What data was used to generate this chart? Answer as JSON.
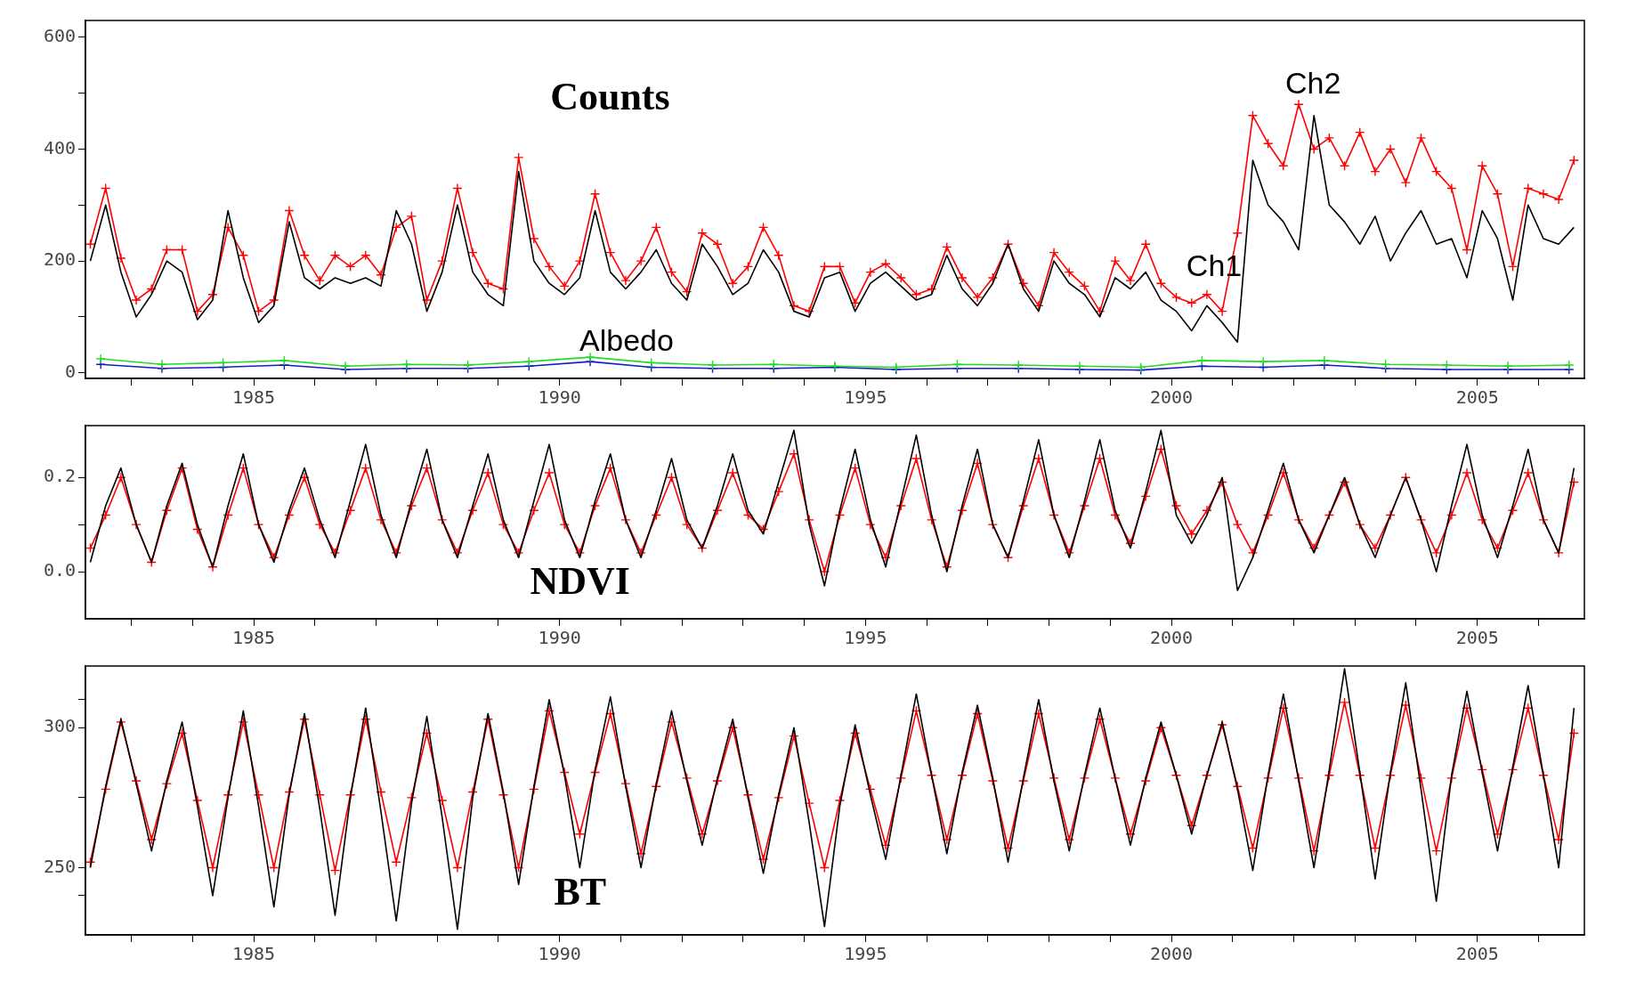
{
  "chart_data": [
    {
      "type": "line",
      "title": "Counts",
      "xlim": [
        1982.25,
        2006.75
      ],
      "xticks": [
        {
          "value": 1983,
          "label": null
        },
        {
          "value": 1984,
          "label": null
        },
        1985,
        {
          "value": 1986,
          "label": null
        },
        {
          "value": 1987,
          "label": null
        },
        {
          "value": 1988,
          "label": null
        },
        {
          "value": 1989,
          "label": null
        },
        1990,
        {
          "value": 1991,
          "label": null
        },
        {
          "value": 1992,
          "label": null
        },
        {
          "value": 1993,
          "label": null
        },
        {
          "value": 1994,
          "label": null
        },
        1995,
        {
          "value": 1996,
          "label": null
        },
        {
          "value": 1997,
          "label": null
        },
        {
          "value": 1998,
          "label": null
        },
        {
          "value": 1999,
          "label": null
        },
        2000,
        {
          "value": 2001,
          "label": null
        },
        {
          "value": 2002,
          "label": null
        },
        {
          "value": 2003,
          "label": null
        },
        {
          "value": 2004,
          "label": null
        },
        2005,
        {
          "value": 2006,
          "label": null
        }
      ],
      "ylim": [
        -10,
        630
      ],
      "yticks": [
        0,
        {
          "value": 100,
          "label": null
        },
        200,
        {
          "value": 300,
          "label": null
        },
        400,
        {
          "value": 500,
          "label": null
        },
        600
      ],
      "x": [
        1982.33,
        1982.58,
        1982.83,
        1983.08,
        1983.33,
        1983.58,
        1983.83,
        1984.08,
        1984.33,
        1984.58,
        1984.83,
        1985.08,
        1985.33,
        1985.58,
        1985.83,
        1986.08,
        1986.33,
        1986.58,
        1986.83,
        1987.08,
        1987.33,
        1987.58,
        1987.83,
        1988.08,
        1988.33,
        1988.58,
        1988.83,
        1989.08,
        1989.33,
        1989.58,
        1989.83,
        1990.08,
        1990.33,
        1990.58,
        1990.83,
        1991.08,
        1991.33,
        1991.58,
        1991.83,
        1992.08,
        1992.33,
        1992.58,
        1992.83,
        1993.08,
        1993.33,
        1993.58,
        1993.83,
        1994.08,
        1994.33,
        1994.58,
        1994.83,
        1995.08,
        1995.33,
        1995.58,
        1995.83,
        1996.08,
        1996.33,
        1996.58,
        1996.83,
        1997.08,
        1997.33,
        1997.58,
        1997.83,
        1998.08,
        1998.33,
        1998.58,
        1998.83,
        1999.08,
        1999.33,
        1999.58,
        1999.83,
        2000.08,
        2000.33,
        2000.58,
        2000.83,
        2001.08,
        2001.33,
        2001.58,
        2001.83,
        2002.08,
        2002.33,
        2002.58,
        2002.83,
        2003.08,
        2003.33,
        2003.58,
        2003.83,
        2004.08,
        2004.33,
        2004.58,
        2004.83,
        2005.08,
        2005.33,
        2005.58,
        2005.83,
        2006.08,
        2006.33,
        2006.58
      ],
      "series": [
        {
          "color": "#000000",
          "marker": "none",
          "values": [
            200,
            300,
            180,
            100,
            140,
            200,
            180,
            95,
            130,
            290,
            170,
            90,
            120,
            270,
            170,
            150,
            170,
            160,
            170,
            155,
            290,
            230,
            110,
            180,
            300,
            180,
            140,
            120,
            360,
            200,
            160,
            140,
            170,
            290,
            180,
            150,
            180,
            220,
            160,
            130,
            230,
            190,
            140,
            160,
            220,
            180,
            110,
            100,
            170,
            180,
            110,
            160,
            180,
            155,
            130,
            140,
            210,
            150,
            120,
            160,
            230,
            150,
            110,
            200,
            160,
            140,
            100,
            170,
            150,
            180,
            130,
            110,
            75,
            120,
            90,
            55,
            380,
            300,
            270,
            220,
            460,
            300,
            270,
            230,
            280,
            200,
            250,
            290,
            230,
            240,
            170,
            290,
            240,
            130,
            300,
            240,
            230,
            260
          ]
        },
        {
          "color": "#ff0000",
          "marker": "cross",
          "values": [
            230,
            330,
            205,
            130,
            150,
            220,
            220,
            110,
            140,
            260,
            210,
            110,
            130,
            290,
            210,
            165,
            210,
            190,
            210,
            175,
            260,
            280,
            130,
            200,
            330,
            215,
            160,
            150,
            385,
            240,
            190,
            155,
            200,
            320,
            215,
            165,
            200,
            260,
            180,
            145,
            250,
            230,
            160,
            190,
            260,
            210,
            120,
            110,
            190,
            190,
            125,
            180,
            195,
            170,
            140,
            150,
            225,
            170,
            135,
            170,
            230,
            160,
            120,
            215,
            180,
            155,
            110,
            200,
            165,
            230,
            160,
            135,
            125,
            140,
            110,
            250,
            460,
            410,
            370,
            480,
            400,
            420,
            370,
            430,
            360,
            400,
            340,
            420,
            360,
            330,
            220,
            370,
            320,
            190,
            330,
            320,
            310,
            380
          ]
        },
        {
          "color": "#22dd22",
          "marker": "cross",
          "x": [
            1982.5,
            1983.5,
            1984.5,
            1985.5,
            1986.5,
            1987.5,
            1988.5,
            1989.5,
            1990.5,
            1991.5,
            1992.5,
            1993.5,
            1994.5,
            1995.5,
            1996.5,
            1997.5,
            1998.5,
            1999.5,
            2000.5,
            2001.5,
            2002.5,
            2003.5,
            2004.5,
            2005.5,
            2006.5
          ],
          "values": [
            25,
            15,
            18,
            22,
            12,
            15,
            14,
            20,
            28,
            18,
            14,
            15,
            12,
            10,
            15,
            14,
            12,
            10,
            22,
            20,
            22,
            15,
            14,
            12,
            14
          ]
        },
        {
          "color": "#1a1acc",
          "marker": "cross",
          "x": [
            1982.5,
            1983.5,
            1984.5,
            1985.5,
            1986.5,
            1987.5,
            1988.5,
            1989.5,
            1990.5,
            1991.5,
            1992.5,
            1993.5,
            1994.5,
            1995.5,
            1996.5,
            1997.5,
            1998.5,
            1999.5,
            2000.5,
            2001.5,
            2002.5,
            2003.5,
            2004.5,
            2005.5,
            2006.5
          ],
          "values": [
            15,
            8,
            10,
            14,
            6,
            8,
            8,
            12,
            20,
            10,
            8,
            8,
            10,
            6,
            8,
            8,
            6,
            5,
            12,
            10,
            14,
            8,
            6,
            6,
            6
          ]
        }
      ],
      "annotations": [
        "Albedo",
        "Ch1",
        "Ch2"
      ]
    },
    {
      "type": "line",
      "title": "NDVI",
      "xlim": [
        1982.25,
        2006.75
      ],
      "xticks": [
        {
          "value": 1983,
          "label": null
        },
        {
          "value": 1984,
          "label": null
        },
        1985,
        {
          "value": 1986,
          "label": null
        },
        {
          "value": 1987,
          "label": null
        },
        {
          "value": 1988,
          "label": null
        },
        {
          "value": 1989,
          "label": null
        },
        1990,
        {
          "value": 1991,
          "label": null
        },
        {
          "value": 1992,
          "label": null
        },
        {
          "value": 1993,
          "label": null
        },
        {
          "value": 1994,
          "label": null
        },
        1995,
        {
          "value": 1996,
          "label": null
        },
        {
          "value": 1997,
          "label": null
        },
        {
          "value": 1998,
          "label": null
        },
        {
          "value": 1999,
          "label": null
        },
        2000,
        {
          "value": 2001,
          "label": null
        },
        {
          "value": 2002,
          "label": null
        },
        {
          "value": 2003,
          "label": null
        },
        {
          "value": 2004,
          "label": null
        },
        2005,
        {
          "value": 2006,
          "label": null
        }
      ],
      "ylim": [
        -0.1,
        0.31
      ],
      "yticks": [
        {
          "value": 0,
          "label": "0.0"
        },
        {
          "value": 0.1,
          "label": null
        },
        {
          "value": 0.2,
          "label": "0.2"
        }
      ],
      "x": [
        1982.33,
        1982.58,
        1982.83,
        1983.08,
        1983.33,
        1983.58,
        1983.83,
        1984.08,
        1984.33,
        1984.58,
        1984.83,
        1985.08,
        1985.33,
        1985.58,
        1985.83,
        1986.08,
        1986.33,
        1986.58,
        1986.83,
        1987.08,
        1987.33,
        1987.58,
        1987.83,
        1988.08,
        1988.33,
        1988.58,
        1988.83,
        1989.08,
        1989.33,
        1989.58,
        1989.83,
        1990.08,
        1990.33,
        1990.58,
        1990.83,
        1991.08,
        1991.33,
        1991.58,
        1991.83,
        1992.08,
        1992.33,
        1992.58,
        1992.83,
        1993.08,
        1993.33,
        1993.58,
        1993.83,
        1994.08,
        1994.33,
        1994.58,
        1994.83,
        1995.08,
        1995.33,
        1995.58,
        1995.83,
        1996.08,
        1996.33,
        1996.58,
        1996.83,
        1997.08,
        1997.33,
        1997.58,
        1997.83,
        1998.08,
        1998.33,
        1998.58,
        1998.83,
        1999.08,
        1999.33,
        1999.58,
        1999.83,
        2000.08,
        2000.33,
        2000.58,
        2000.83,
        2001.08,
        2001.33,
        2001.58,
        2001.83,
        2002.08,
        2002.33,
        2002.58,
        2002.83,
        2003.08,
        2003.33,
        2003.58,
        2003.83,
        2004.08,
        2004.33,
        2004.58,
        2004.83,
        2005.08,
        2005.33,
        2005.58,
        2005.83,
        2006.08,
        2006.33,
        2006.58
      ],
      "series": [
        {
          "color": "#000000",
          "marker": "none",
          "values": [
            0.02,
            0.14,
            0.22,
            0.1,
            0.02,
            0.14,
            0.23,
            0.1,
            0.01,
            0.14,
            0.25,
            0.1,
            0.02,
            0.13,
            0.22,
            0.11,
            0.03,
            0.15,
            0.27,
            0.12,
            0.03,
            0.15,
            0.26,
            0.11,
            0.03,
            0.14,
            0.25,
            0.11,
            0.03,
            0.15,
            0.27,
            0.11,
            0.03,
            0.15,
            0.25,
            0.11,
            0.03,
            0.13,
            0.24,
            0.11,
            0.05,
            0.14,
            0.25,
            0.13,
            0.08,
            0.19,
            0.3,
            0.1,
            -0.03,
            0.13,
            0.26,
            0.11,
            0.01,
            0.15,
            0.29,
            0.12,
            0.0,
            0.14,
            0.26,
            0.1,
            0.03,
            0.15,
            0.28,
            0.12,
            0.03,
            0.15,
            0.28,
            0.13,
            0.05,
            0.17,
            0.3,
            0.12,
            0.06,
            0.12,
            0.2,
            -0.04,
            0.03,
            0.13,
            0.23,
            0.11,
            0.04,
            0.12,
            0.2,
            0.1,
            0.03,
            0.12,
            0.2,
            0.11,
            0.0,
            0.14,
            0.27,
            0.12,
            0.03,
            0.14,
            0.26,
            0.11,
            0.04,
            0.22
          ]
        },
        {
          "color": "#ff0000",
          "marker": "cross",
          "values": [
            0.05,
            0.12,
            0.2,
            0.1,
            0.02,
            0.13,
            0.22,
            0.09,
            0.01,
            0.12,
            0.22,
            0.1,
            0.03,
            0.12,
            0.2,
            0.1,
            0.04,
            0.13,
            0.22,
            0.11,
            0.04,
            0.14,
            0.22,
            0.11,
            0.04,
            0.13,
            0.21,
            0.1,
            0.04,
            0.13,
            0.21,
            0.1,
            0.04,
            0.14,
            0.22,
            0.11,
            0.04,
            0.12,
            0.2,
            0.1,
            0.05,
            0.13,
            0.21,
            0.12,
            0.09,
            0.17,
            0.25,
            0.11,
            0.0,
            0.12,
            0.22,
            0.1,
            0.03,
            0.14,
            0.24,
            0.11,
            0.01,
            0.13,
            0.23,
            0.1,
            0.03,
            0.14,
            0.24,
            0.12,
            0.04,
            0.14,
            0.24,
            0.12,
            0.06,
            0.16,
            0.26,
            0.14,
            0.08,
            0.13,
            0.19,
            0.1,
            0.04,
            0.12,
            0.21,
            0.11,
            0.05,
            0.12,
            0.19,
            0.1,
            0.05,
            0.12,
            0.2,
            0.11,
            0.04,
            0.12,
            0.21,
            0.11,
            0.05,
            0.13,
            0.21,
            0.11,
            0.04,
            0.19
          ]
        }
      ]
    },
    {
      "type": "line",
      "title": "BT",
      "xlim": [
        1982.25,
        2006.75
      ],
      "xticks": [
        {
          "value": 1983,
          "label": null
        },
        {
          "value": 1984,
          "label": null
        },
        1985,
        {
          "value": 1986,
          "label": null
        },
        {
          "value": 1987,
          "label": null
        },
        {
          "value": 1988,
          "label": null
        },
        {
          "value": 1989,
          "label": null
        },
        1990,
        {
          "value": 1991,
          "label": null
        },
        {
          "value": 1992,
          "label": null
        },
        {
          "value": 1993,
          "label": null
        },
        {
          "value": 1994,
          "label": null
        },
        1995,
        {
          "value": 1996,
          "label": null
        },
        {
          "value": 1997,
          "label": null
        },
        {
          "value": 1998,
          "label": null
        },
        {
          "value": 1999,
          "label": null
        },
        2000,
        {
          "value": 2001,
          "label": null
        },
        {
          "value": 2002,
          "label": null
        },
        {
          "value": 2003,
          "label": null
        },
        {
          "value": 2004,
          "label": null
        },
        2005,
        {
          "value": 2006,
          "label": null
        }
      ],
      "ylim": [
        226,
        322
      ],
      "yticks": [
        {
          "value": 240,
          "label": null
        },
        250,
        {
          "value": 275,
          "label": null
        },
        300,
        {
          "value": 310,
          "label": null
        }
      ],
      "x": [
        1982.33,
        1982.58,
        1982.83,
        1983.08,
        1983.33,
        1983.58,
        1983.83,
        1984.08,
        1984.33,
        1984.58,
        1984.83,
        1985.08,
        1985.33,
        1985.58,
        1985.83,
        1986.08,
        1986.33,
        1986.58,
        1986.83,
        1987.08,
        1987.33,
        1987.58,
        1987.83,
        1988.08,
        1988.33,
        1988.58,
        1988.83,
        1989.08,
        1989.33,
        1989.58,
        1989.83,
        1990.08,
        1990.33,
        1990.58,
        1990.83,
        1991.08,
        1991.33,
        1991.58,
        1991.83,
        1992.08,
        1992.33,
        1992.58,
        1992.83,
        1993.08,
        1993.33,
        1993.58,
        1993.83,
        1994.08,
        1994.33,
        1994.58,
        1994.83,
        1995.08,
        1995.33,
        1995.58,
        1995.83,
        1996.08,
        1996.33,
        1996.58,
        1996.83,
        1997.08,
        1997.33,
        1997.58,
        1997.83,
        1998.08,
        1998.33,
        1998.58,
        1998.83,
        1999.08,
        1999.33,
        1999.58,
        1999.83,
        2000.08,
        2000.33,
        2000.58,
        2000.83,
        2001.08,
        2001.33,
        2001.58,
        2001.83,
        2002.08,
        2002.33,
        2002.58,
        2002.83,
        2003.08,
        2003.33,
        2003.58,
        2003.83,
        2004.08,
        2004.33,
        2004.58,
        2004.83,
        2005.08,
        2005.33,
        2005.58,
        2005.83,
        2006.08,
        2006.33,
        2006.58
      ],
      "series": [
        {
          "color": "#000000",
          "marker": "none",
          "values": [
            250,
            279,
            303,
            280,
            256,
            281,
            302,
            272,
            240,
            275,
            306,
            272,
            236,
            276,
            305,
            271,
            233,
            275,
            307,
            270,
            231,
            273,
            304,
            268,
            228,
            275,
            305,
            277,
            244,
            279,
            310,
            283,
            250,
            285,
            311,
            279,
            250,
            280,
            306,
            281,
            258,
            282,
            303,
            275,
            248,
            276,
            300,
            266,
            229,
            272,
            301,
            276,
            253,
            283,
            312,
            283,
            255,
            284,
            308,
            282,
            252,
            282,
            310,
            281,
            256,
            283,
            307,
            282,
            258,
            282,
            302,
            283,
            262,
            283,
            302,
            278,
            249,
            283,
            312,
            281,
            250,
            285,
            321,
            284,
            246,
            284,
            316,
            278,
            238,
            283,
            313,
            284,
            256,
            286,
            315,
            283,
            250,
            307
          ]
        },
        {
          "color": "#ff0000",
          "marker": "cross",
          "values": [
            252,
            278,
            302,
            281,
            260,
            280,
            298,
            274,
            250,
            276,
            302,
            276,
            250,
            277,
            303,
            276,
            249,
            276,
            303,
            277,
            252,
            275,
            298,
            274,
            250,
            277,
            303,
            276,
            250,
            278,
            306,
            284,
            262,
            284,
            305,
            280,
            255,
            279,
            302,
            282,
            262,
            281,
            300,
            276,
            253,
            275,
            297,
            273,
            250,
            274,
            298,
            278,
            258,
            282,
            306,
            283,
            260,
            283,
            305,
            281,
            257,
            281,
            305,
            282,
            260,
            282,
            303,
            282,
            262,
            281,
            300,
            283,
            265,
            283,
            301,
            279,
            257,
            282,
            307,
            282,
            256,
            283,
            309,
            283,
            257,
            283,
            308,
            282,
            256,
            282,
            307,
            285,
            262,
            285,
            307,
            283,
            260,
            298
          ]
        }
      ]
    }
  ]
}
